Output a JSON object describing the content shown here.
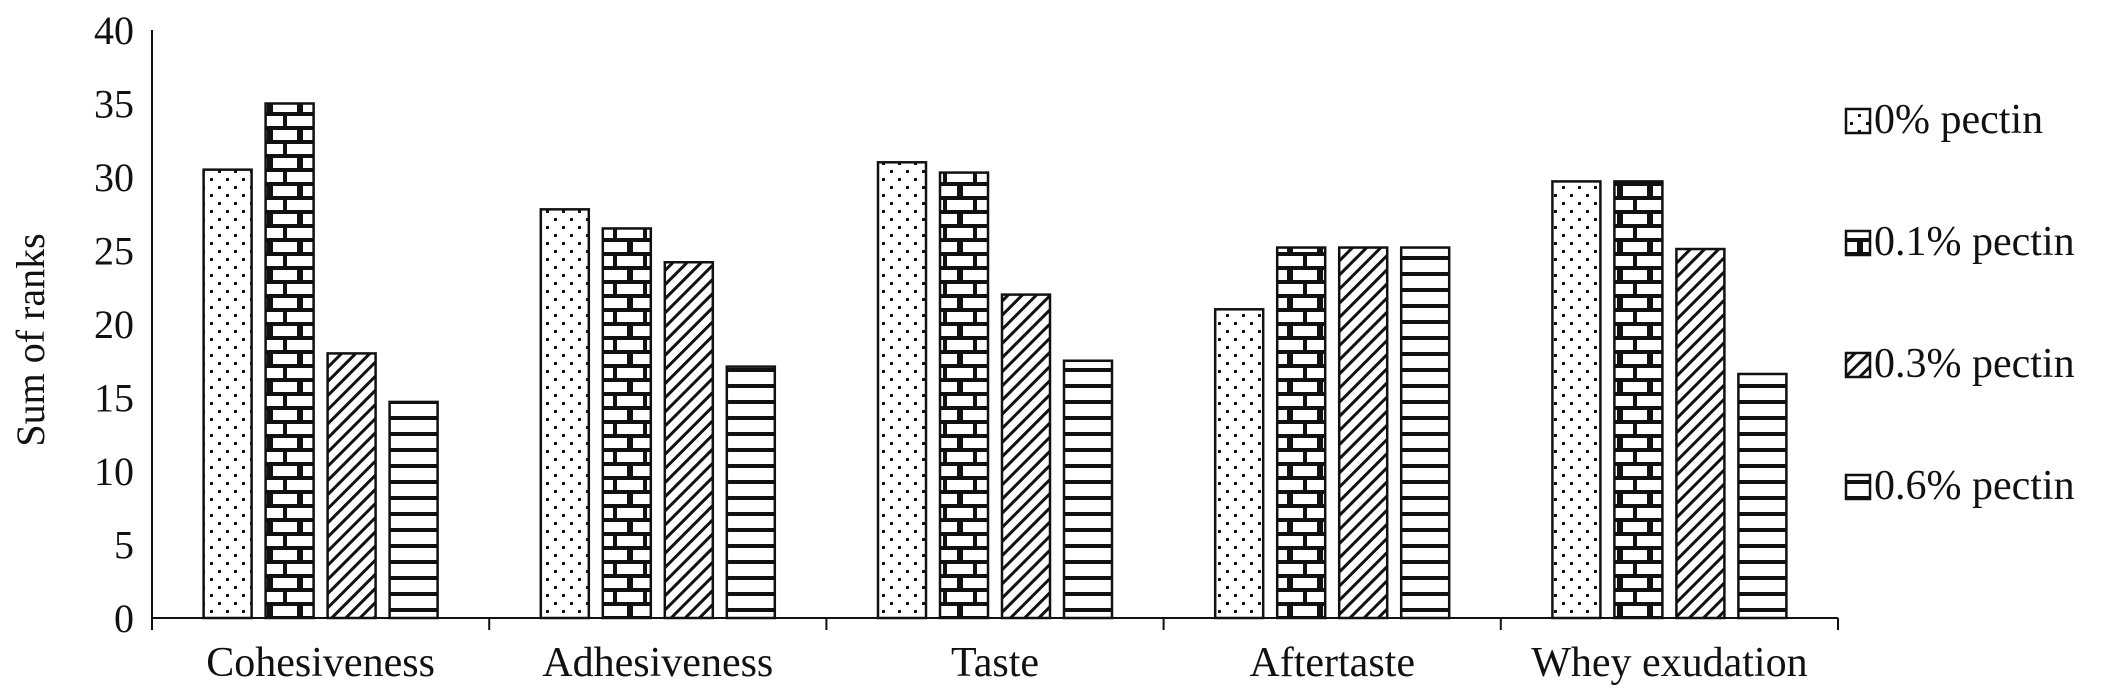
{
  "chart_data": {
    "type": "bar",
    "ylabel": "Sum of ranks",
    "xlabel": "",
    "ylim": [
      0,
      40
    ],
    "yticks": [
      0,
      5,
      10,
      15,
      20,
      25,
      30,
      35,
      40
    ],
    "categories": [
      "Cohesiveness",
      "Adhesiveness",
      "Taste",
      "Aftertaste",
      "Whey exudation"
    ],
    "series": [
      {
        "name": "0% pectin",
        "pattern": "dots",
        "values": [
          30.5,
          27.8,
          31.0,
          21.0,
          29.7
        ]
      },
      {
        "name": "0.1% pectin",
        "pattern": "brick",
        "values": [
          35.0,
          26.5,
          30.3,
          25.2,
          29.7
        ]
      },
      {
        "name": "0.3% pectin",
        "pattern": "diagonal",
        "values": [
          18.0,
          24.2,
          22.0,
          25.2,
          25.1
        ]
      },
      {
        "name": "0.6% pectin",
        "pattern": "horizontal",
        "values": [
          14.7,
          17.1,
          17.5,
          25.2,
          16.6
        ]
      }
    ],
    "legend_position": "right",
    "grid": false,
    "colors": {
      "stroke": "#111111",
      "fill": "#ffffff"
    }
  }
}
